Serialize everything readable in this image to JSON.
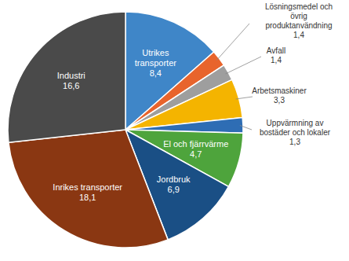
{
  "chart_data": {
    "type": "pie",
    "categories": [
      "Utrikes transporter",
      "Lösningsmedel och övrig produktanvändning",
      "Avfall",
      "Arbetsmaskiner",
      "Uppvärmning av bostäder och lokaler",
      "El och fjärrvärme",
      "Jordbruk",
      "Inrikes transporter",
      "Industri"
    ],
    "values": [
      8.4,
      1.4,
      1.4,
      3.3,
      1.3,
      4.7,
      6.9,
      18.1,
      16.6
    ],
    "value_labels": [
      "8,4",
      "1,4",
      "1,4",
      "3,3",
      "1,3",
      "4,7",
      "6,9",
      "18,1",
      "16,6"
    ],
    "colors": [
      "#3f86c8",
      "#e8642c",
      "#9e9e9e",
      "#f4b400",
      "#2e6db4",
      "#4ea43c",
      "#1a4f85",
      "#8a3712",
      "#4a4a4a"
    ],
    "data_labels": true
  }
}
